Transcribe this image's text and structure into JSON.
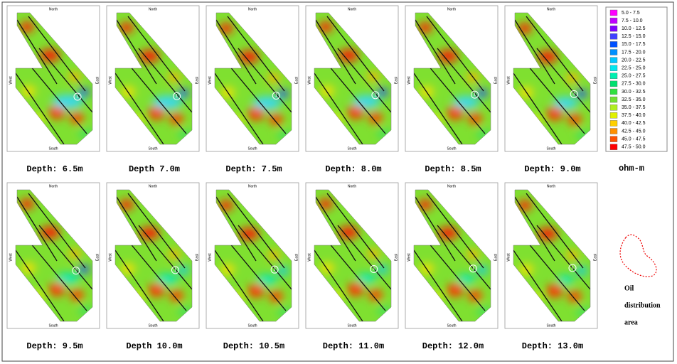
{
  "figure": {
    "panels": [
      {
        "caption": "Depth: 6.5m"
      },
      {
        "caption": "Depth 7.0m"
      },
      {
        "caption": "Depth: 7.5m"
      },
      {
        "caption": "Depth: 8.0m"
      },
      {
        "caption": "Depth: 8.5m"
      },
      {
        "caption": "Depth: 9.0m"
      },
      {
        "caption": "Depth: 9.5m"
      },
      {
        "caption": "Depth 10.0m"
      },
      {
        "caption": "Depth: 10.5m"
      },
      {
        "caption": "Depth: 11.0m"
      },
      {
        "caption": "Depth: 12.0m"
      },
      {
        "caption": "Depth: 13.0m"
      }
    ],
    "compass": {
      "north": "North",
      "south": "South",
      "east": "East",
      "west": "West"
    },
    "marker": "1",
    "legend": {
      "unit": "ohm-m",
      "items": [
        {
          "label": "5.0 - 7.5",
          "color": "#ff00ff"
        },
        {
          "label": "7.5 - 10.0",
          "color": "#c000ff"
        },
        {
          "label": "10.0 - 12.5",
          "color": "#8000ff"
        },
        {
          "label": "12.5 - 15.0",
          "color": "#4040ff"
        },
        {
          "label": "15.0 - 17.5",
          "color": "#0050ff"
        },
        {
          "label": "17.5 - 20.0",
          "color": "#0090ff"
        },
        {
          "label": "20.0 - 22.5",
          "color": "#00c8ff"
        },
        {
          "label": "22.5 - 25.0",
          "color": "#00e8f0"
        },
        {
          "label": "25.0 - 27.5",
          "color": "#00f0b0"
        },
        {
          "label": "27.5 - 30.0",
          "color": "#00e070"
        },
        {
          "label": "30.0 - 32.5",
          "color": "#30e040"
        },
        {
          "label": "32.5 - 35.0",
          "color": "#70e030"
        },
        {
          "label": "35.0 - 37.5",
          "color": "#b0ee20"
        },
        {
          "label": "37.5 - 40.0",
          "color": "#e0f000"
        },
        {
          "label": "40.0 - 42.5",
          "color": "#ffd000"
        },
        {
          "label": "42.5 - 45.0",
          "color": "#ff9000"
        },
        {
          "label": "45.0 - 47.5",
          "color": "#ff5000"
        },
        {
          "label": "47.5 - 50.0",
          "color": "#ff0000"
        }
      ]
    },
    "oil_legend": [
      "Oil",
      "distribution",
      "area"
    ]
  }
}
